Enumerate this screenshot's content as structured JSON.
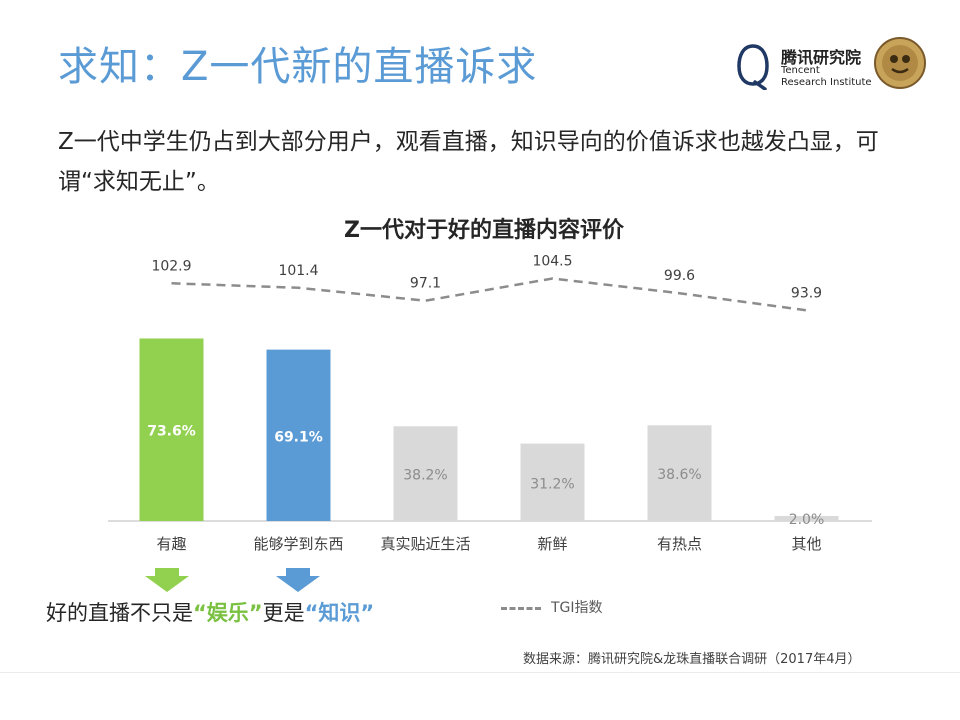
{
  "header": {
    "title": "求知：Z一代新的直播诉求",
    "subtitle": "Z一代中学生仍占到大部分用户，观看直播，知识导向的价值诉求也越发凸显，可谓“求知无止”。"
  },
  "logo": {
    "name_cn": "腾讯研究院",
    "name_en_line1": "Tencent",
    "name_en_line2": "Research Institute"
  },
  "chart_data": {
    "type": "bar",
    "title": "Z一代对于好的直播内容评价",
    "categories": [
      "有趣",
      "能够学到东西",
      "真实贴近生活",
      "新鲜",
      "有热点",
      "其他"
    ],
    "series": [
      {
        "type": "bar",
        "values": [
          73.6,
          69.1,
          38.2,
          31.2,
          38.6,
          2.0
        ],
        "value_labels": [
          "73.6%",
          "69.1%",
          "38.2%",
          "31.2%",
          "38.6%",
          "2.0%"
        ],
        "colors": [
          "#92d050",
          "#5b9bd5",
          "#d9d9d9",
          "#d9d9d9",
          "#d9d9d9",
          "#d9d9d9"
        ]
      },
      {
        "name": "TGI指数",
        "type": "line",
        "style": "dashed",
        "values": [
          102.9,
          101.4,
          97.1,
          104.5,
          99.6,
          93.9
        ],
        "value_labels": [
          "102.9",
          "101.4",
          "97.1",
          "104.5",
          "99.6",
          "93.9"
        ]
      }
    ],
    "legend": "bottom",
    "grid": false
  },
  "tagline": {
    "prefix": "好的直播不只是",
    "word1": "“娱乐”",
    "middle": "更是",
    "word2": "“知识”"
  },
  "source": "数据来源：腾讯研究院&龙珠直播联合调研（2017年4月）",
  "colors": {
    "accent": "#5b9bd5",
    "green": "#92d050",
    "grey": "#d9d9d9"
  }
}
